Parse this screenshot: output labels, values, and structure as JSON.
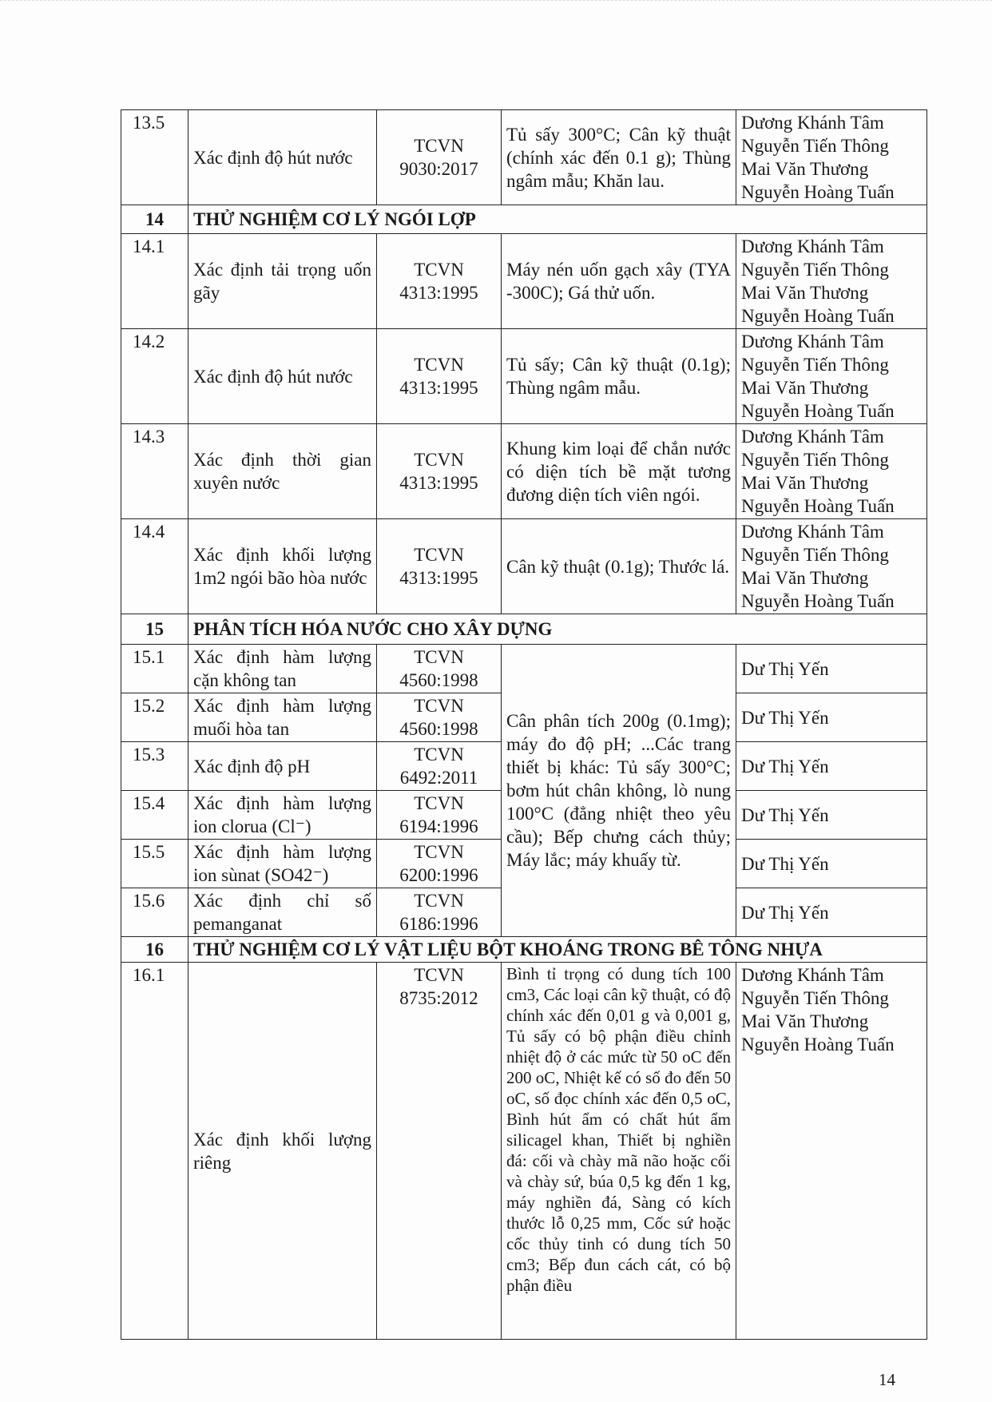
{
  "page_number": "14",
  "rows": [
    {
      "type": "item",
      "no": "13.5",
      "name": "Xác định độ hút nước",
      "standard": "TCVN 9030:2017",
      "equipment": "Tủ sấy 300°C; Cân kỹ thuật (chính xác đến 0.1 g); Thùng ngâm mẫu; Khăn lau.",
      "staff": "Dương Khánh Tâm\nNguyễn Tiến Thông\nMai Văn Thương\nNguyễn Hoàng Tuấn",
      "h": 106
    },
    {
      "type": "section",
      "no": "14",
      "title": "THỬ NGHIỆM CƠ LÝ NGÓI LỢP",
      "h": 32
    },
    {
      "type": "item",
      "no": "14.1",
      "name": "Xác định tải trọng uốn gãy",
      "standard": "TCVN 4313:1995",
      "equipment": "Máy nén uốn gạch xây (TYA -300C); Gá thử uốn.",
      "staff": "Dương Khánh Tâm\nNguyễn Tiến Thông\nMai Văn Thương\nNguyễn Hoàng Tuấn",
      "h": 105
    },
    {
      "type": "item",
      "no": "14.2",
      "name": "Xác định độ hút nước",
      "standard": "TCVN 4313:1995",
      "equipment": "Tủ sấy; Cân kỹ thuật (0.1g); Thùng ngâm mẫu.",
      "staff": "Dương Khánh Tâm\nNguyễn Tiến Thông\nMai Văn Thương\nNguyễn Hoàng Tuấn",
      "h": 104
    },
    {
      "type": "item",
      "no": "14.3",
      "name": "Xác định thời gian xuyên nước",
      "standard": "TCVN 4313:1995",
      "equipment": "Khung kim loại để chắn nước có diện tích bề mặt tương đương diện tích viên ngói.",
      "staff": "Dương Khánh Tâm\nNguyễn Tiến Thông\nMai Văn Thương\nNguyễn Hoàng Tuấn",
      "h": 104
    },
    {
      "type": "item",
      "no": "14.4",
      "name": "Xác định khối lượng 1m2 ngói bão hòa nước",
      "standard": "TCVN 4313:1995",
      "equipment": "Cân kỹ thuật (0.1g); Thước lá.",
      "staff": "Dương Khánh Tâm\nNguyễn Tiến Thông\nMai Văn Thương\nNguyễn Hoàng Tuấn",
      "h": 105
    },
    {
      "type": "section",
      "no": "15",
      "title": "PHÂN TÍCH HÓA NƯỚC CHO XÂY DỰNG",
      "h": 34
    },
    {
      "type": "item",
      "no": "15.1",
      "name": "Xác định hàm lượng cặn không tan",
      "standard": "TCVN 4560:1998",
      "equipment": "Cân phân tích 200g (0.1mg); máy đo độ pH; ...Các trang thiết bị khác: Tủ sấy 300°C; bơm hút chân không, lò nung 100°C (đẳng nhiệt theo yêu cầu); Bếp chưng cách thủy; Máy lắc; máy khuấy từ.",
      "rowspan": 6,
      "staff": "Dư Thị Yến",
      "h": 52
    },
    {
      "type": "item",
      "no": "15.2",
      "name": "Xác định hàm lượng muối hòa tan",
      "standard": "TCVN 4560:1998",
      "staff": "Dư Thị Yến",
      "h": 53
    },
    {
      "type": "item",
      "no": "15.3",
      "name": "Xác định độ pH",
      "standard": "TCVN 6492:2011",
      "staff": "Dư Thị Yến",
      "h": 53
    },
    {
      "type": "item",
      "no": "15.4",
      "name": "Xác định hàm lượng ion clorua (Cl⁻)",
      "standard": "TCVN 6194:1996",
      "staff": "Dư Thị Yến",
      "h": 52
    },
    {
      "type": "item",
      "no": "15.5",
      "name": "Xác định hàm lượng ion sùnat (SO42⁻)",
      "standard": "TCVN 6200:1996",
      "staff": "Dư Thị Yến",
      "h": 53
    },
    {
      "type": "item",
      "no": "15.6",
      "name": "Xác định chỉ số pemanganat",
      "standard": "TCVN 6186:1996",
      "staff": "Dư Thị Yến",
      "h": 52
    },
    {
      "type": "section",
      "no": "16",
      "title": "THỬ NGHIỆM CƠ LÝ VẬT LIỆU BỘT KHOÁNG TRONG BÊ TÔNG NHỰA",
      "h": 28
    },
    {
      "type": "item",
      "no": "16.1",
      "name": "Xác định khối lượng riêng",
      "standard": "TCVN 8735:2012",
      "equipment": "Bình tỉ trọng có dung tích 100 cm3, Các loại cân kỹ thuật, có độ chính xác đến 0,01 g và 0,001 g, Tủ sấy có bộ phận điều chỉnh nhiệt độ ở các mức từ 50 oC đến 200 oC, Nhiệt kế có số đo đến 50 oC, số đọc chính xác đến 0,5 oC, Bình hút ẩm có chất hút ẩm silicagel khan, Thiết bị nghiền đá: cối và chày mã não hoặc cối và chày sứ, búa 0,5 kg đến 1 kg, máy nghiền đá, Sàng có kích thước lỗ 0,25 mm, Cốc sứ hoặc cốc thủy tinh có dung tích 50 cm3; Bếp đun cách cát, có bộ phận điều",
      "staff": "Dương Khánh Tâm\nNguyễn Tiến Thông\nMai Văn Thương\nNguyễn Hoàng Tuấn",
      "h": 423
    }
  ]
}
